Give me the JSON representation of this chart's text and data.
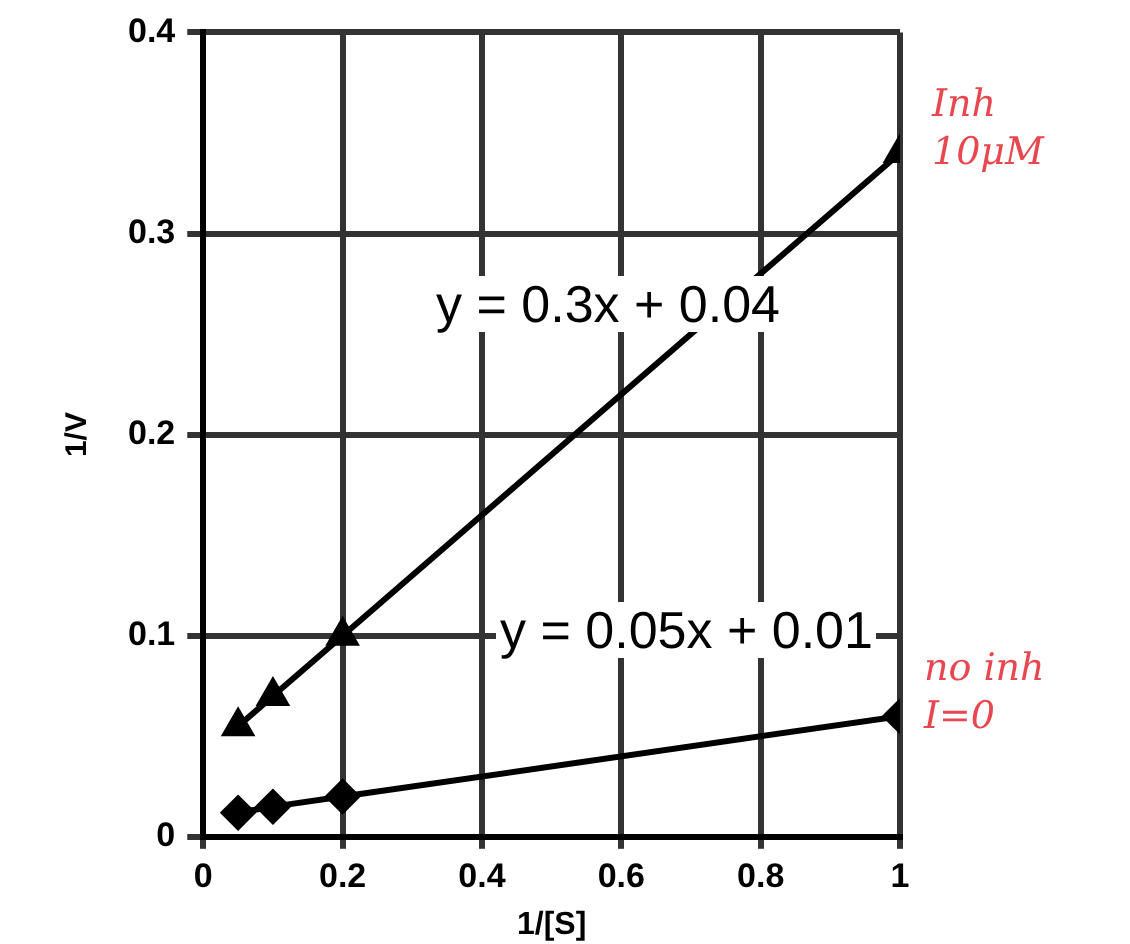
{
  "chart_data": {
    "type": "line",
    "xlabel": "1/[S]",
    "ylabel": "1/V",
    "series": [
      {
        "color": "#000000",
        "marker": "triangle",
        "x": [
          0.05,
          0.1,
          0.2,
          1
        ],
        "values": [
          0.055,
          0.07,
          0.1,
          0.34
        ]
      },
      {
        "color": "#000000",
        "marker": "diamond",
        "x": [
          0.05,
          0.1,
          0.2,
          1
        ],
        "values": [
          0.012,
          0.015,
          0.02,
          0.06
        ]
      }
    ],
    "xlim": [
      0,
      1
    ],
    "xticks": [
      0,
      0.2,
      0.4,
      0.6,
      0.8,
      1
    ],
    "ylim": [
      0,
      0.4
    ],
    "yticks": [
      0,
      0.1,
      0.2,
      0.3,
      0.4
    ],
    "grid": true,
    "legend": false,
    "annotations": [
      "y = 0.3x + 0.04",
      "y = 0.05x + 0.01",
      "Inh 10μM",
      "no inh I=0"
    ]
  }
}
